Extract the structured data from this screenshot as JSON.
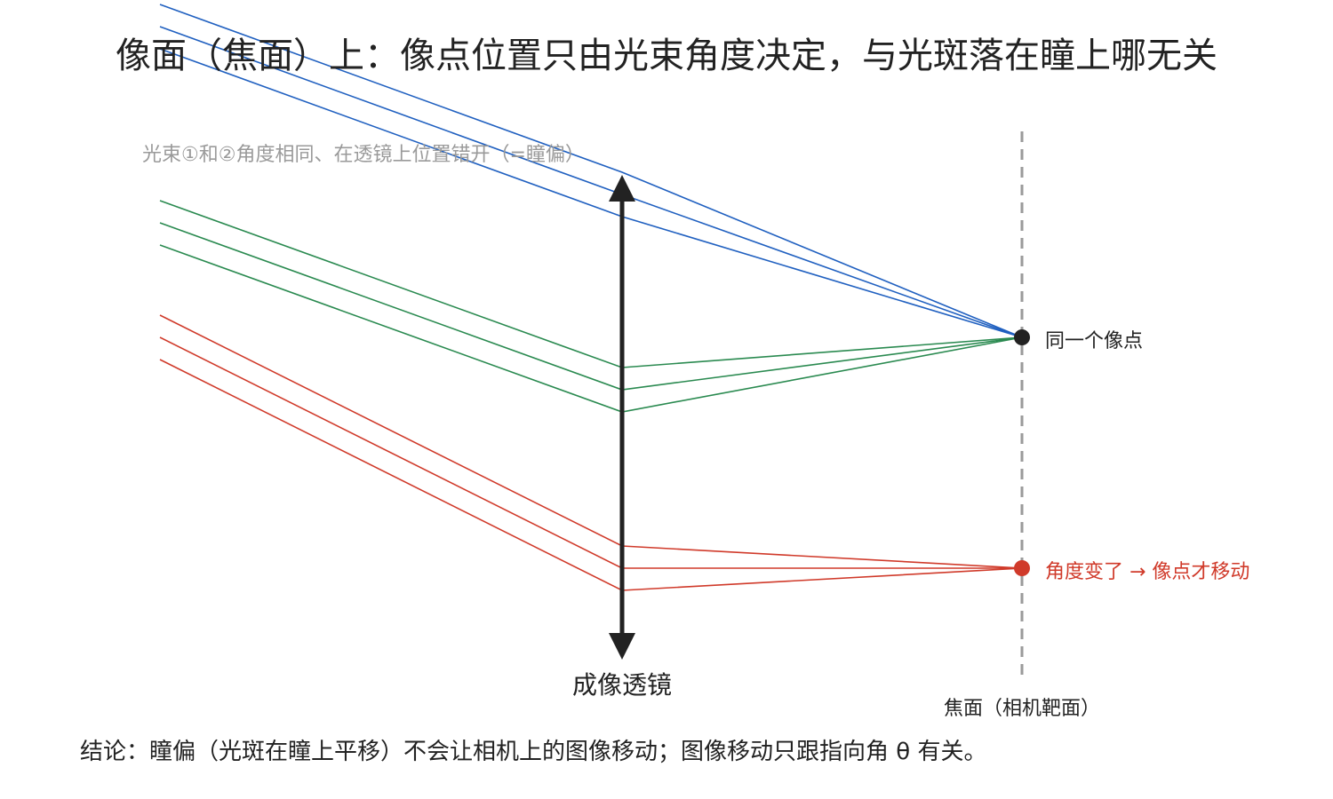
{
  "title": "像面（焦面）上：像点位置只由光束角度决定，与光斑落在瞳上哪无关",
  "beam_note": "光束①和②角度相同、在透镜上位置错开（=瞳偏）",
  "lens_label": "成像透镜",
  "focal_plane_label": "焦面（相机靶面）",
  "same_point_label": "同一个像点",
  "moved_point_label": "角度变了 → 像点才移动",
  "conclusion": "结论：瞳偏（光斑在瞳上平移）不会让相机上的图像移动；图像移动只跟指向角 θ 有关。",
  "colors": {
    "blue": "#2060c0",
    "green": "#2a8a50",
    "red": "#d03a2a",
    "lens": "#222222",
    "focal_plane": "#9a9a9a"
  }
}
